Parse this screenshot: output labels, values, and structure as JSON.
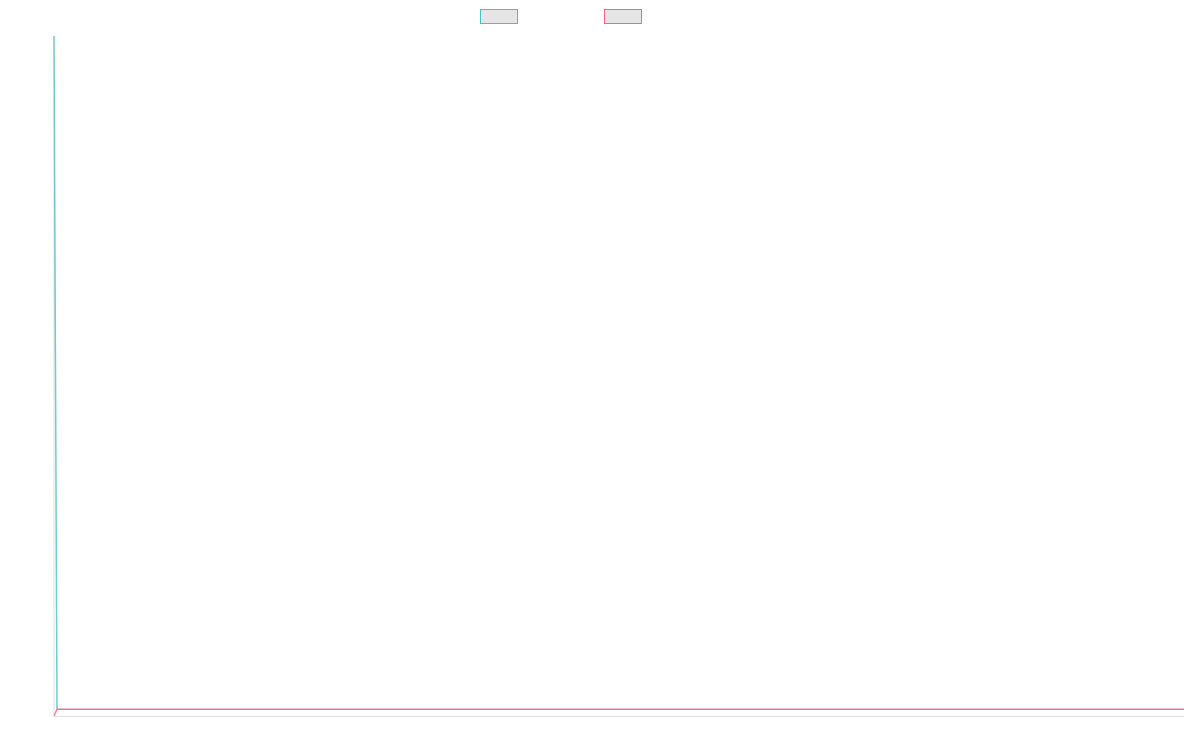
{
  "chart_data": {
    "type": "line",
    "title": "",
    "xlabel": "",
    "ylabel": "",
    "ylim": [
      0,
      100
    ],
    "xlim": [
      0,
      377
    ],
    "grid": false,
    "legend_position": "top",
    "series": [
      {
        "label": "",
        "color": "#4bc0c0",
        "points": [
          [
            0,
            100
          ],
          [
            1,
            1
          ],
          [
            377,
            1
          ]
        ]
      },
      {
        "label": "",
        "color": "#ff6384",
        "points": [
          [
            0,
            0
          ],
          [
            1,
            1
          ],
          [
            377,
            1
          ]
        ]
      }
    ]
  }
}
